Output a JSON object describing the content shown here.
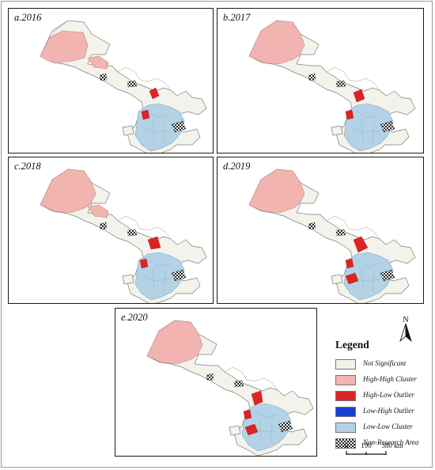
{
  "panels": [
    {
      "label": "a.2016"
    },
    {
      "label": "b.2017"
    },
    {
      "label": "c.2018"
    },
    {
      "label": "d.2019"
    },
    {
      "label": "e.2020"
    }
  ],
  "legend": {
    "title": "Legend",
    "items": [
      {
        "label": "Not Significant",
        "color": "#f3f3ec",
        "pattern": "none"
      },
      {
        "label": "High-High Cluster",
        "color": "#f1b4b1",
        "pattern": "none"
      },
      {
        "label": "High-Low Outlier",
        "color": "#dd2424",
        "pattern": "none"
      },
      {
        "label": "Low-High Outlier",
        "color": "#1440d6",
        "pattern": "none"
      },
      {
        "label": "Low-Low Cluster",
        "color": "#b3d2e6",
        "pattern": "none"
      },
      {
        "label": "Non-Research Area",
        "color": "#ffffff",
        "pattern": "checker"
      }
    ]
  },
  "north_arrow": {
    "label": "N"
  },
  "scale_bar": {
    "ticks": [
      "0",
      "190",
      "380 km"
    ]
  }
}
